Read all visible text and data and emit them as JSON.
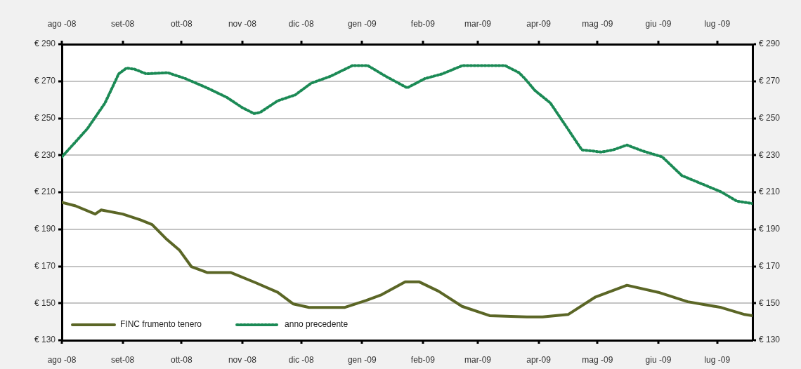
{
  "chart_data": {
    "type": "line",
    "xlim": [
      "2008-08-01",
      "2009-07-19"
    ],
    "xticks": [
      {
        "value": "2008-08-01",
        "label": "ago -08"
      },
      {
        "value": "2008-09-01",
        "label": "set-08"
      },
      {
        "value": "2008-10-01",
        "label": "ott-08"
      },
      {
        "value": "2008-11-01",
        "label": "nov -08"
      },
      {
        "value": "2008-12-01",
        "label": "dic -08"
      },
      {
        "value": "2009-01-01",
        "label": "gen -09"
      },
      {
        "value": "2009-02-01",
        "label": "feb-09"
      },
      {
        "value": "2009-03-01",
        "label": "mar-09"
      },
      {
        "value": "2009-04-01",
        "label": "apr-09"
      },
      {
        "value": "2009-05-01",
        "label": "mag -09"
      },
      {
        "value": "2009-06-01",
        "label": "giu -09"
      },
      {
        "value": "2009-07-01",
        "label": "lug -09"
      }
    ],
    "x2lim": [
      "2008-08-01",
      "2009-07-19"
    ],
    "x2ticks": [
      {
        "value": "2008-08-01",
        "label": "ago -08"
      },
      {
        "value": "2008-09-01",
        "label": "set-08"
      },
      {
        "value": "2008-10-01",
        "label": "ott-08"
      },
      {
        "value": "2008-11-01",
        "label": "nov -08"
      },
      {
        "value": "2008-12-01",
        "label": "dic -08"
      },
      {
        "value": "2009-01-01",
        "label": "gen -09"
      },
      {
        "value": "2009-02-01",
        "label": "feb-09"
      },
      {
        "value": "2009-03-01",
        "label": "mar-09"
      },
      {
        "value": "2009-04-01",
        "label": "apr-09"
      },
      {
        "value": "2009-05-01",
        "label": "mag -09"
      },
      {
        "value": "2009-06-01",
        "label": "giu -09"
      },
      {
        "value": "2009-07-01",
        "label": "lug -09"
      }
    ],
    "ylim": [
      130,
      290
    ],
    "yticks": [
      {
        "value": 130,
        "label": "€ 130"
      },
      {
        "value": 150,
        "label": "€ 150"
      },
      {
        "value": 170,
        "label": "€ 170"
      },
      {
        "value": 190,
        "label": "€ 190"
      },
      {
        "value": 210,
        "label": "€ 210"
      },
      {
        "value": 230,
        "label": "€ 230"
      },
      {
        "value": 250,
        "label": "€ 250"
      },
      {
        "value": 270,
        "label": "€ 270"
      },
      {
        "value": 290,
        "label": "€ 290"
      }
    ],
    "y2lim": [
      130,
      290
    ],
    "y2ticks": [
      {
        "value": 130,
        "label": "€ 130"
      },
      {
        "value": 150,
        "label": "€ 150"
      },
      {
        "value": 170,
        "label": "€ 170"
      },
      {
        "value": 190,
        "label": "€ 190"
      },
      {
        "value": 210,
        "label": "€ 210"
      },
      {
        "value": 230,
        "label": "€ 230"
      },
      {
        "value": 250,
        "label": "€ 250"
      },
      {
        "value": 270,
        "label": "€ 270"
      },
      {
        "value": 290,
        "label": "€ 290"
      }
    ],
    "grid": "y",
    "legend": "bottom left",
    "marker": "none",
    "series": [
      {
        "name": "FINC frumento tenero",
        "color": "#5b6626",
        "line_style": "solid",
        "x": [
          "2008-08-01",
          "2008-08-08",
          "2008-08-18",
          "2008-08-21",
          "2008-09-01",
          "2008-09-10",
          "2008-09-16",
          "2008-09-23",
          "2008-09-30",
          "2008-10-06",
          "2008-10-14",
          "2008-10-26",
          "2008-11-08",
          "2008-11-19",
          "2008-11-27",
          "2008-12-05",
          "2008-12-23",
          "2009-01-03",
          "2009-01-11",
          "2009-01-23",
          "2009-01-30",
          "2009-02-09",
          "2009-02-21",
          "2009-03-07",
          "2009-03-26",
          "2009-04-03",
          "2009-04-16",
          "2009-04-30",
          "2009-05-16",
          "2009-06-01",
          "2009-06-16",
          "2009-07-03",
          "2009-07-15",
          "2009-07-19"
        ],
        "values": [
          204.5,
          202.6,
          198.2,
          200.4,
          198.2,
          195.1,
          192.5,
          185,
          178.6,
          169.8,
          166.6,
          166.6,
          161,
          155.9,
          149.6,
          147.7,
          147.7,
          151.5,
          154.6,
          161.6,
          161.6,
          156.5,
          148.3,
          143.3,
          142.6,
          142.6,
          143.9,
          153.4,
          159.7,
          155.9,
          150.8,
          147.7,
          143.9,
          143.3
        ]
      },
      {
        "name": "anno precedente",
        "color": "#1b8a55",
        "line_style": "dotted",
        "x": [
          "2008-08-01",
          "2008-08-14",
          "2008-08-23",
          "2008-08-30",
          "2008-09-03",
          "2008-09-07",
          "2008-09-13",
          "2008-09-24",
          "2008-10-03",
          "2008-10-14",
          "2008-10-24",
          "2008-11-01",
          "2008-11-07",
          "2008-11-10",
          "2008-11-19",
          "2008-11-28",
          "2008-12-06",
          "2008-12-16",
          "2008-12-27",
          "2009-01-04",
          "2009-01-13",
          "2009-01-24",
          "2009-02-02",
          "2009-02-11",
          "2009-02-21",
          "2009-03-15",
          "2009-03-22",
          "2009-03-25",
          "2009-03-30",
          "2009-04-07",
          "2009-04-15",
          "2009-04-23",
          "2009-05-03",
          "2009-05-09",
          "2009-05-16",
          "2009-05-24",
          "2009-06-03",
          "2009-06-13",
          "2009-06-23",
          "2009-07-03",
          "2009-07-11",
          "2009-07-19"
        ],
        "values": [
          229,
          244.3,
          258.2,
          274,
          277.1,
          276.5,
          274,
          274.6,
          271.4,
          266.4,
          261.3,
          255.7,
          252.5,
          253.1,
          259.4,
          262.6,
          268.9,
          272.7,
          278.4,
          278.4,
          272.7,
          266.4,
          271.4,
          274,
          278.4,
          278.4,
          274.6,
          271.4,
          265.1,
          258.2,
          245.6,
          232.9,
          231.7,
          232.9,
          235.5,
          232.3,
          229.1,
          219,
          214.6,
          210.2,
          205.2,
          203.9
        ]
      }
    ]
  }
}
